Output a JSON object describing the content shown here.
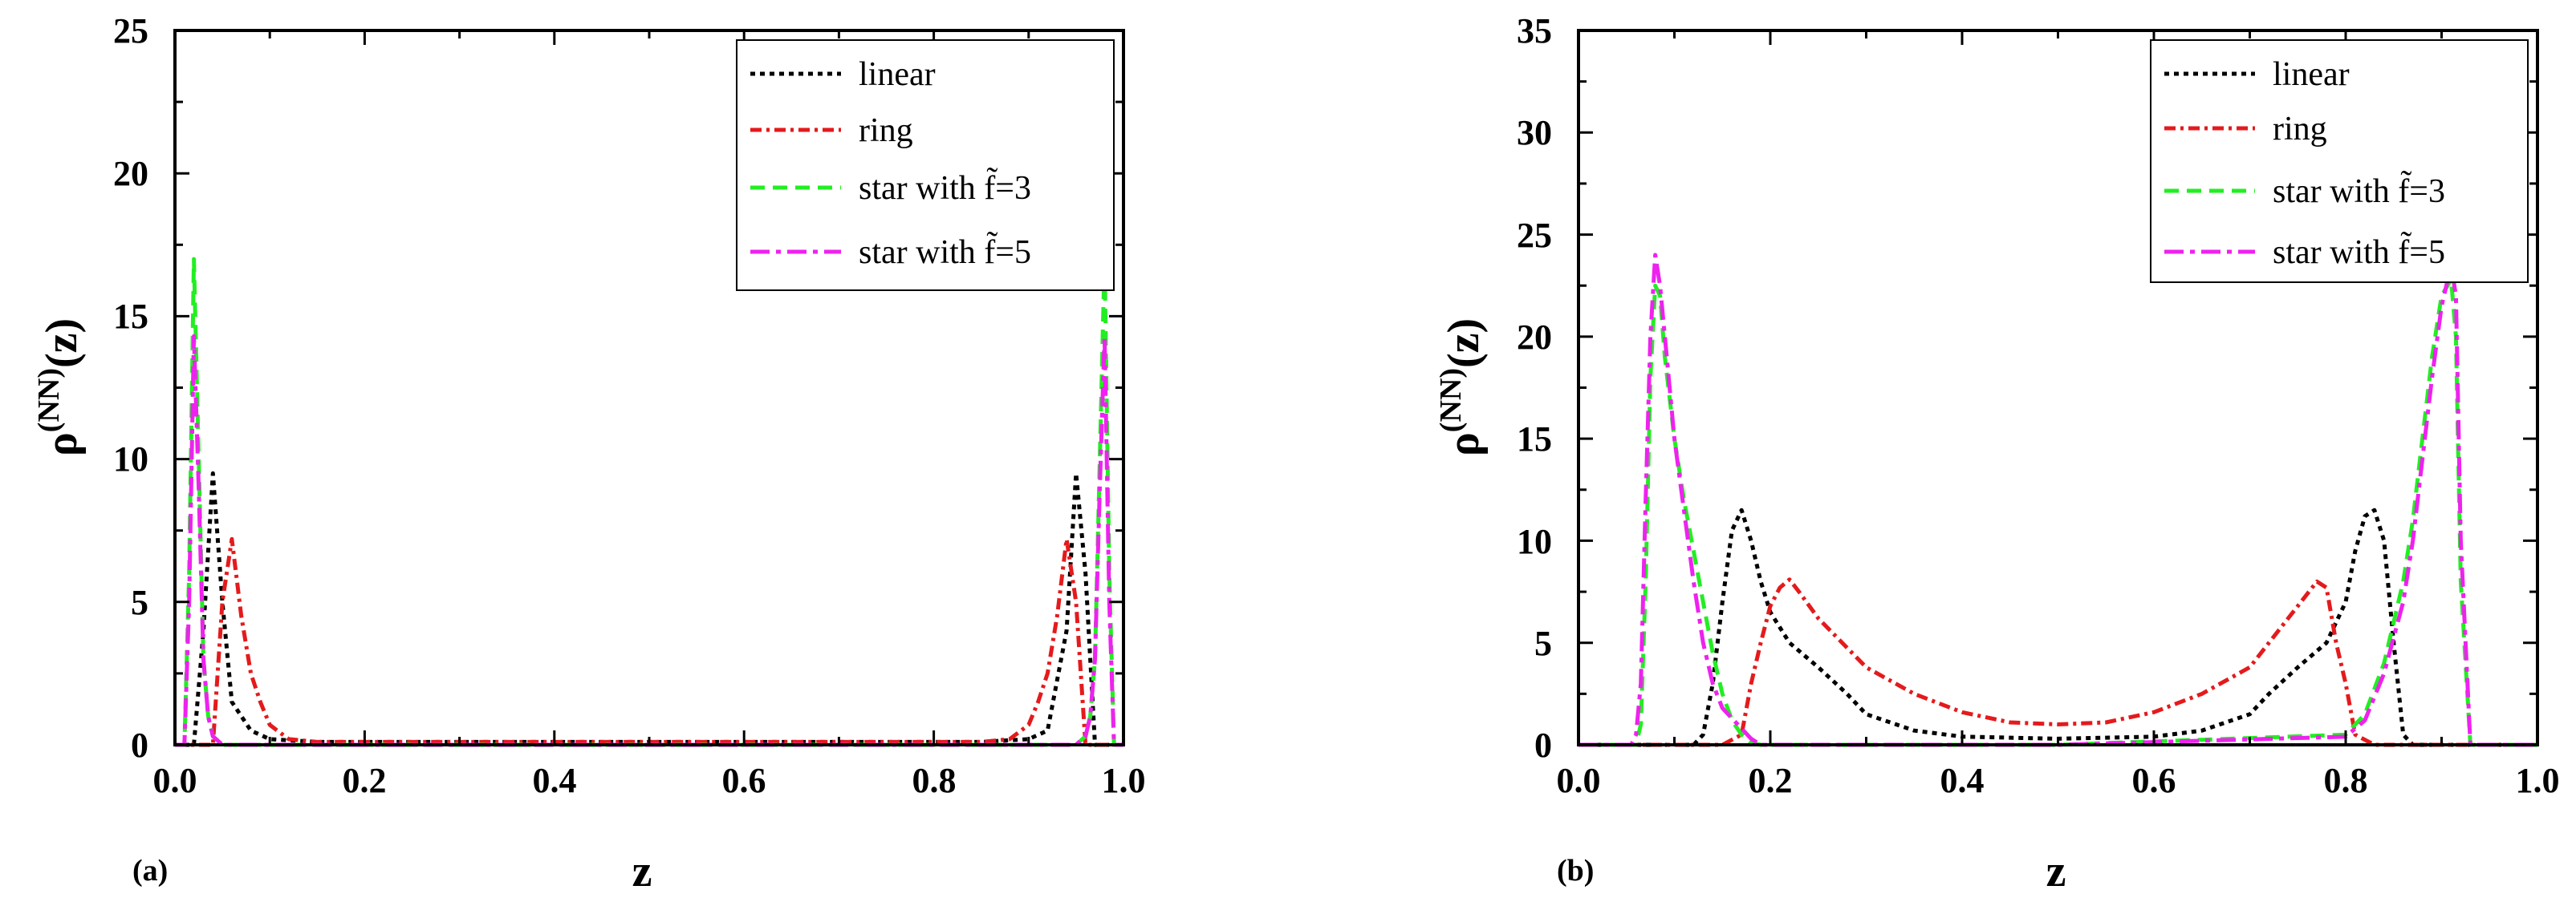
{
  "figure": {
    "description": "Two-panel line chart"
  },
  "chart_data": [
    {
      "type": "line",
      "panel_label": "(a)",
      "xlabel": "z",
      "ylabel_main": "ρ",
      "ylabel_sup": "(NN)",
      "ylabel_tail": "(z)",
      "xlim": [
        0.0,
        1.0
      ],
      "ylim": [
        0,
        25
      ],
      "xticks": [
        "0.0",
        "0.2",
        "0.4",
        "0.6",
        "0.8",
        "1.0"
      ],
      "yticks": [
        "0",
        "5",
        "10",
        "15",
        "20",
        "25"
      ],
      "legend": {
        "placement": "top-right"
      },
      "series": [
        {
          "name": "linear",
          "color": "#000000",
          "dash": "dotted",
          "x": [
            0.0,
            0.02,
            0.03,
            0.04,
            0.05,
            0.06,
            0.08,
            0.1,
            0.15,
            0.5,
            0.85,
            0.9,
            0.92,
            0.94,
            0.95,
            0.96,
            0.97,
            0.98,
            1.0
          ],
          "y": [
            0,
            0,
            4,
            9.5,
            5,
            1.5,
            0.5,
            0.2,
            0.1,
            0.1,
            0.1,
            0.2,
            0.5,
            4,
            9.5,
            6,
            0,
            0,
            0
          ]
        },
        {
          "name": "ring",
          "color": "#e41a1c",
          "dash": "dashdot",
          "x": [
            0.0,
            0.03,
            0.04,
            0.05,
            0.06,
            0.07,
            0.08,
            0.09,
            0.1,
            0.12,
            0.15,
            0.5,
            0.85,
            0.88,
            0.9,
            0.91,
            0.92,
            0.93,
            0.94,
            0.95,
            0.96,
            1.0
          ],
          "y": [
            0,
            0,
            0,
            5,
            7.2,
            4.5,
            2.5,
            1.5,
            0.7,
            0.2,
            0.1,
            0.1,
            0.1,
            0.2,
            0.7,
            1.5,
            2.5,
            4.5,
            7.2,
            5,
            0,
            0
          ]
        },
        {
          "name": "star with f̃=3",
          "color": "#22ee22",
          "dash": "dashed",
          "x": [
            0.0,
            0.01,
            0.015,
            0.02,
            0.025,
            0.03,
            0.035,
            0.04,
            0.05,
            0.1,
            0.5,
            0.9,
            0.95,
            0.96,
            0.965,
            0.97,
            0.975,
            0.98,
            0.985,
            0.99,
            1.0
          ],
          "y": [
            0,
            0,
            6,
            17,
            10,
            3,
            1,
            0.3,
            0,
            0,
            0,
            0,
            0,
            0.3,
            1,
            3,
            10,
            17,
            6,
            0,
            0
          ]
        },
        {
          "name": "star with f̃=5",
          "color": "#ee22ee",
          "dash": "dashdotlong",
          "x": [
            0.0,
            0.01,
            0.015,
            0.02,
            0.025,
            0.03,
            0.035,
            0.04,
            0.05,
            0.1,
            0.5,
            0.9,
            0.95,
            0.96,
            0.965,
            0.97,
            0.975,
            0.98,
            0.985,
            0.99,
            1.0
          ],
          "y": [
            0,
            0,
            5,
            14.3,
            9,
            3,
            1,
            0.3,
            0,
            0,
            0,
            0,
            0,
            0.3,
            1,
            3,
            9,
            14.3,
            5,
            0,
            0
          ]
        }
      ]
    },
    {
      "type": "line",
      "panel_label": "(b)",
      "xlabel": "z",
      "ylabel_main": "ρ",
      "ylabel_sup": "(NN)",
      "ylabel_tail": "(z)",
      "xlim": [
        0.0,
        1.0
      ],
      "ylim": [
        0,
        35
      ],
      "xticks": [
        "0.0",
        "0.2",
        "0.4",
        "0.6",
        "0.8",
        "1.0"
      ],
      "yticks": [
        "0",
        "5",
        "10",
        "15",
        "20",
        "25",
        "30",
        "35"
      ],
      "legend": {
        "placement": "top-right"
      },
      "series": [
        {
          "name": "linear",
          "color": "#000000",
          "dash": "dotted",
          "x": [
            0.0,
            0.12,
            0.13,
            0.14,
            0.15,
            0.16,
            0.17,
            0.18,
            0.19,
            0.2,
            0.22,
            0.25,
            0.28,
            0.3,
            0.35,
            0.4,
            0.45,
            0.5,
            0.55,
            0.6,
            0.65,
            0.7,
            0.72,
            0.75,
            0.78,
            0.8,
            0.81,
            0.82,
            0.83,
            0.84,
            0.85,
            0.86,
            0.87,
            0.88,
            1.0
          ],
          "y": [
            0,
            0,
            0.5,
            3,
            7,
            10.5,
            11.5,
            10,
            8,
            6.5,
            5,
            3.8,
            2.5,
            1.5,
            0.7,
            0.4,
            0.35,
            0.3,
            0.35,
            0.4,
            0.7,
            1.5,
            2.5,
            3.8,
            5,
            7,
            9.5,
            11.2,
            11.5,
            10,
            5,
            0.5,
            0,
            0,
            0
          ]
        },
        {
          "name": "ring",
          "color": "#e41a1c",
          "dash": "dashdot",
          "x": [
            0.0,
            0.15,
            0.17,
            0.18,
            0.19,
            0.2,
            0.21,
            0.22,
            0.23,
            0.25,
            0.3,
            0.35,
            0.4,
            0.45,
            0.5,
            0.55,
            0.6,
            0.65,
            0.7,
            0.72,
            0.75,
            0.77,
            0.78,
            0.79,
            0.8,
            0.81,
            0.83,
            0.85,
            1.0
          ],
          "y": [
            0,
            0,
            0.5,
            3,
            5,
            6.8,
            7.7,
            8.1,
            7.5,
            6.2,
            3.8,
            2.5,
            1.6,
            1.1,
            1.0,
            1.1,
            1.6,
            2.5,
            3.8,
            5,
            6.8,
            8,
            7.7,
            5,
            3,
            0.5,
            0,
            0,
            0
          ]
        },
        {
          "name": "star with f̃=3",
          "color": "#22ee22",
          "dash": "dashed",
          "x": [
            0.0,
            0.06,
            0.065,
            0.07,
            0.075,
            0.08,
            0.085,
            0.09,
            0.1,
            0.11,
            0.12,
            0.13,
            0.14,
            0.15,
            0.16,
            0.17,
            0.18,
            0.19,
            0.5,
            0.8,
            0.82,
            0.84,
            0.86,
            0.87,
            0.88,
            0.89,
            0.9,
            0.91,
            0.915,
            0.92,
            0.93,
            1.0
          ],
          "y": [
            0,
            0,
            1,
            8,
            18,
            22.5,
            22,
            19,
            15,
            12,
            9.5,
            7,
            4.5,
            2.5,
            1.2,
            0.5,
            0.1,
            0,
            0,
            0.5,
            1.5,
            4,
            8,
            11,
            15,
            19,
            22,
            22.8,
            20,
            8,
            0,
            0
          ]
        },
        {
          "name": "star with f̃=5",
          "color": "#ee22ee",
          "dash": "dashdotlong",
          "x": [
            0.0,
            0.055,
            0.06,
            0.065,
            0.07,
            0.075,
            0.08,
            0.085,
            0.09,
            0.1,
            0.11,
            0.12,
            0.13,
            0.14,
            0.15,
            0.16,
            0.17,
            0.18,
            0.19,
            0.5,
            0.8,
            0.82,
            0.84,
            0.86,
            0.87,
            0.88,
            0.89,
            0.9,
            0.91,
            0.915,
            0.92,
            0.93,
            1.0
          ],
          "y": [
            0,
            0,
            0.5,
            3,
            12,
            20,
            24,
            22.5,
            20,
            15,
            11.5,
            8,
            5,
            3,
            1.8,
            1.3,
            0.8,
            0.3,
            0,
            0,
            0.4,
            1.2,
            3.5,
            7,
            10,
            14,
            18,
            21.5,
            23.5,
            22,
            10,
            0,
            0
          ]
        }
      ]
    }
  ]
}
